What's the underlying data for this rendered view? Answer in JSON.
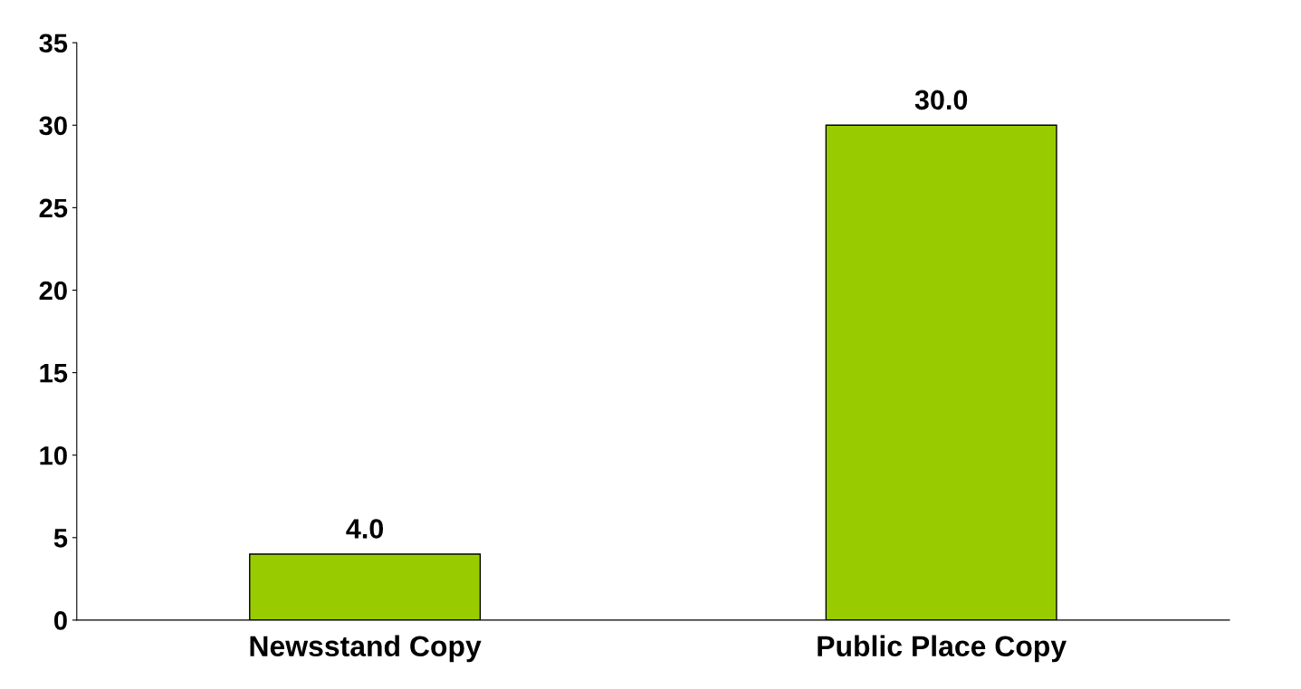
{
  "chart_data": {
    "type": "bar",
    "categories": [
      "Newsstand Copy",
      "Public Place Copy"
    ],
    "values": [
      4.0,
      30.0
    ],
    "color": "#99cc00",
    "value_labels": [
      "4.0",
      "30.0"
    ],
    "ylim": [
      0,
      35
    ],
    "yticks": [
      0,
      5,
      10,
      15,
      20,
      25,
      30,
      35
    ],
    "grid": false,
    "legend": false
  }
}
